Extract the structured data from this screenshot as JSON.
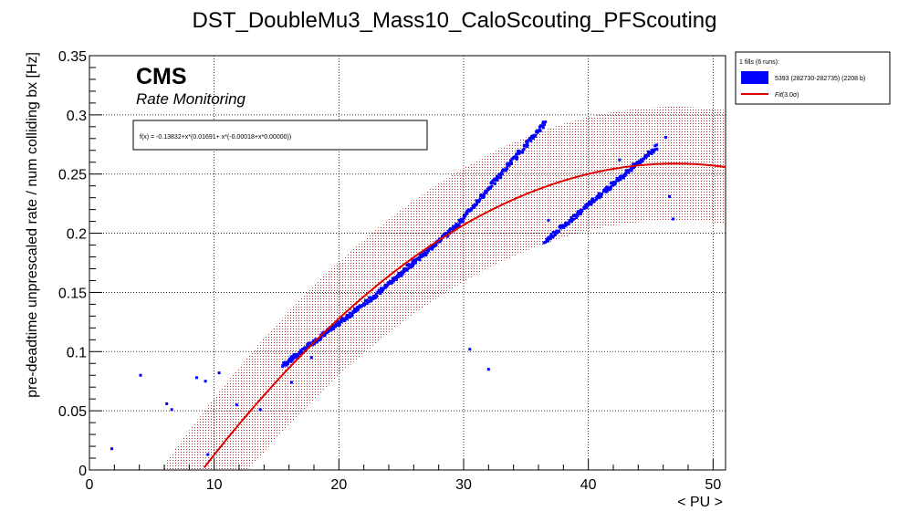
{
  "chart_data": {
    "type": "scatter",
    "title": "DST_DoubleMu3_Mass10_CaloScouting_PFScouting",
    "xlabel": "< PU >",
    "ylabel": "pre-deadtime unprescaled rate / num colliding bx [Hz]",
    "xlim": [
      0,
      51
    ],
    "ylim": [
      0,
      0.35
    ],
    "x_ticks": [
      0,
      10,
      20,
      30,
      40,
      50
    ],
    "x_tick_labels": [
      "0",
      "10",
      "20",
      "30",
      "40",
      "50"
    ],
    "y_ticks": [
      0,
      0.05,
      0.1,
      0.15,
      0.2,
      0.25,
      0.3,
      0.35
    ],
    "y_tick_labels": [
      "0",
      "0.05",
      "0.1",
      "0.15",
      "0.2",
      "0.25",
      "0.3",
      "0.35"
    ],
    "grid": true,
    "cms_label": "CMS",
    "cms_sublabel": "Rate Monitoring",
    "fit_function_text": "f(x) = -0.13832+x*(0.01691+ x*(-0.00018+x*0.00000))",
    "fit": {
      "coefficients": [
        -0.13832,
        0.01691,
        -0.00018
      ],
      "x_range": [
        9,
        51
      ],
      "band_sigma": 3.0,
      "band_halfwidth": 0.048,
      "band_x_range": [
        6,
        51
      ]
    },
    "legend": {
      "placement": "top-right outside",
      "title": "1 fills (6 runs):",
      "entries": [
        {
          "label": "5393 (282730-282735) (2208 b)",
          "color": "#0000ff",
          "kind": "box"
        },
        {
          "label": "Fit(3.0σ)",
          "color": "#dd0000",
          "kind": "line",
          "italic_prefix": "Fit",
          "suffix": "(3.0σ)"
        }
      ]
    },
    "colors": {
      "points": "#0000ff",
      "fit": "#dd0000",
      "band": "#b03030"
    },
    "series": [
      {
        "name": "5393 (282730-282735) (2208 b)",
        "segments": [
          {
            "x_start": 15.5,
            "x_end": 23.0,
            "y_start": 0.088,
            "y_end": 0.148
          },
          {
            "x_start": 23.0,
            "x_end": 29.5,
            "y_start": 0.148,
            "y_end": 0.207
          },
          {
            "x_start": 29.5,
            "x_end": 36.5,
            "y_start": 0.207,
            "y_end": 0.293
          },
          {
            "x_start": 36.5,
            "x_end": 39.0,
            "y_start": 0.193,
            "y_end": 0.215
          },
          {
            "x_start": 39.0,
            "x_end": 45.5,
            "y_start": 0.215,
            "y_end": 0.273
          }
        ],
        "outliers": [
          [
            1.8,
            0.018
          ],
          [
            4.1,
            0.08
          ],
          [
            6.2,
            0.056
          ],
          [
            6.6,
            0.051
          ],
          [
            8.6,
            0.078
          ],
          [
            9.3,
            0.075
          ],
          [
            9.5,
            0.013
          ],
          [
            10.4,
            0.082
          ],
          [
            11.8,
            0.055
          ],
          [
            13.7,
            0.051
          ],
          [
            16.2,
            0.074
          ],
          [
            17.8,
            0.095
          ],
          [
            30.5,
            0.102
          ],
          [
            32.0,
            0.085
          ],
          [
            36.8,
            0.211
          ],
          [
            42.5,
            0.262
          ],
          [
            46.2,
            0.281
          ],
          [
            46.5,
            0.231
          ],
          [
            46.8,
            0.212
          ]
        ]
      }
    ]
  }
}
